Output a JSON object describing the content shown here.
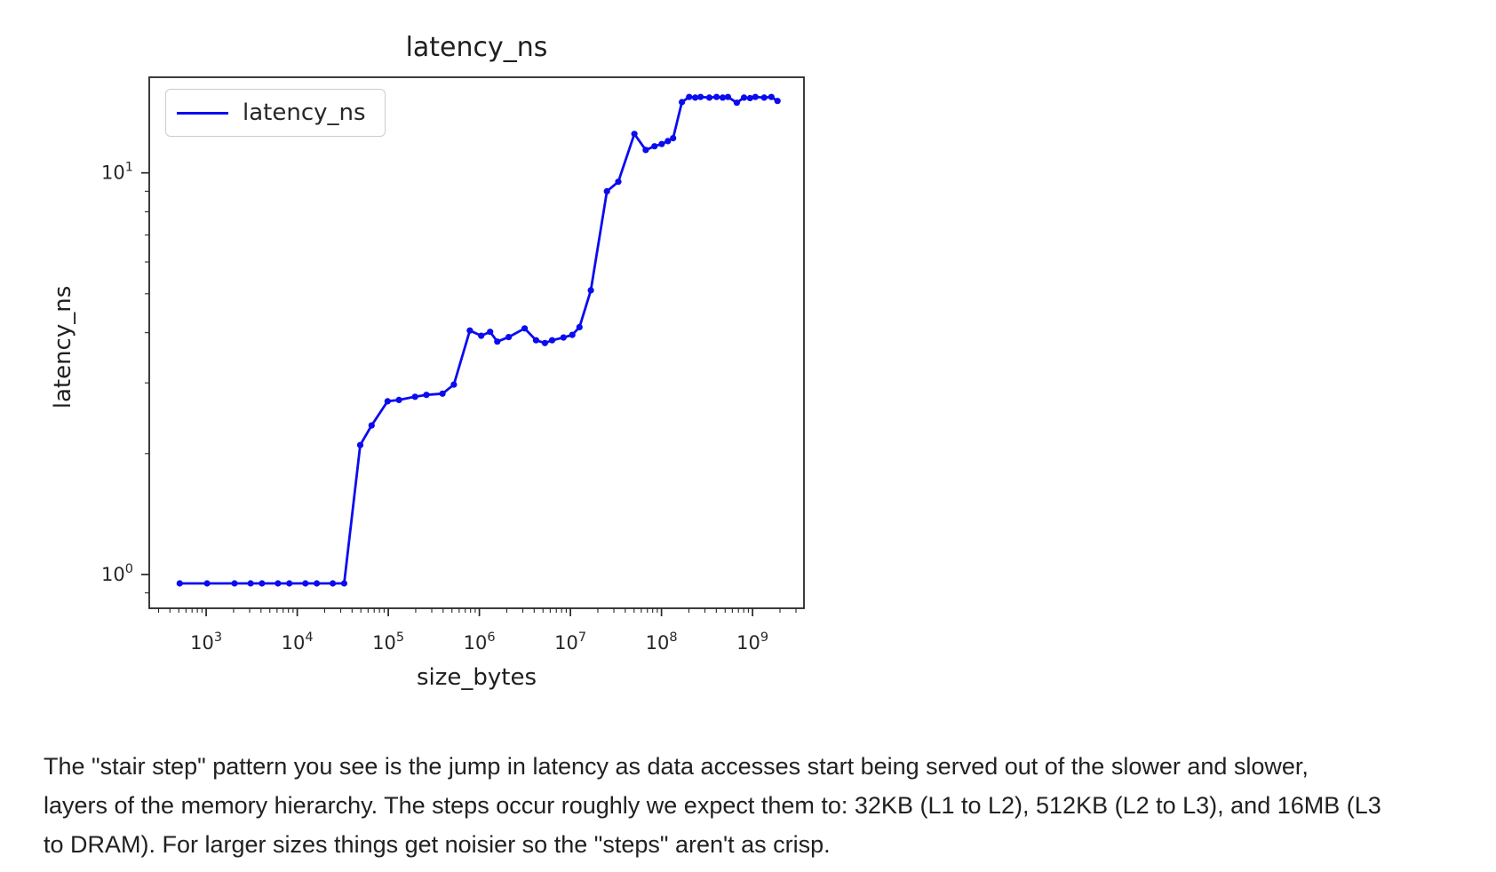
{
  "chart_data": {
    "type": "line",
    "title": "latency_ns",
    "xlabel": "size_bytes",
    "ylabel": "latency_ns",
    "xscale": "log",
    "yscale": "log",
    "grid": false,
    "xlim": [
      237,
      3670000000
    ],
    "ylim": [
      0.824,
      17.3
    ],
    "x_major_tick_exponents": [
      3,
      4,
      5,
      6,
      7,
      8,
      9
    ],
    "y_major_tick_exponents": [
      0,
      1
    ],
    "y_minor_tick_values": [
      0.9,
      2,
      3,
      4,
      5,
      6,
      7,
      8,
      9
    ],
    "legend": {
      "position": "upper left",
      "entries": [
        "latency_ns"
      ]
    },
    "series": [
      {
        "name": "latency_ns",
        "color": "#0b0bf0",
        "marker": "circle",
        "x": [
          512,
          1024,
          2048,
          3072,
          4096,
          6144,
          8192,
          12288,
          16384,
          24576,
          32768,
          49152,
          65536,
          98304,
          131072,
          196608,
          262144,
          393216,
          524288,
          786432,
          1048576,
          1310720,
          1572864,
          2097152,
          3145728,
          4194304,
          5242880,
          6291456,
          8388608,
          10485760,
          12582912,
          16777216,
          25165824,
          33554432,
          50331648,
          67108864,
          83886080,
          100663296,
          117440512,
          134217728,
          167772160,
          201326592,
          234881024,
          268435456,
          335544320,
          402653184,
          469762048,
          536870912,
          671088640,
          805306368,
          939524096,
          1073741824,
          1342177280,
          1610612736,
          1879048192
        ],
        "y": [
          0.95,
          0.95,
          0.95,
          0.95,
          0.95,
          0.95,
          0.95,
          0.95,
          0.95,
          0.95,
          0.95,
          2.1,
          2.35,
          2.7,
          2.72,
          2.77,
          2.8,
          2.82,
          2.97,
          4.05,
          3.93,
          4.02,
          3.8,
          3.9,
          4.1,
          3.83,
          3.77,
          3.83,
          3.89,
          3.95,
          4.13,
          5.1,
          9.0,
          9.5,
          12.5,
          11.4,
          11.65,
          11.8,
          12.0,
          12.2,
          15.0,
          15.45,
          15.4,
          15.45,
          15.4,
          15.45,
          15.4,
          15.45,
          14.95,
          15.4,
          15.35,
          15.45,
          15.4,
          15.45,
          15.1
        ]
      }
    ]
  },
  "paragraph": {
    "lines": [
      "The \"stair step\" pattern you see is the jump in latency as data accesses start being served out of the slower and slower,",
      "layers of the memory hierarchy. The steps occur roughly we expect them to: 32KB (L1 to L2), 512KB (L2 to L3), and 16MB (L3",
      "to DRAM). For larger sizes things get noisier so the \"steps\" aren't as crisp."
    ]
  }
}
